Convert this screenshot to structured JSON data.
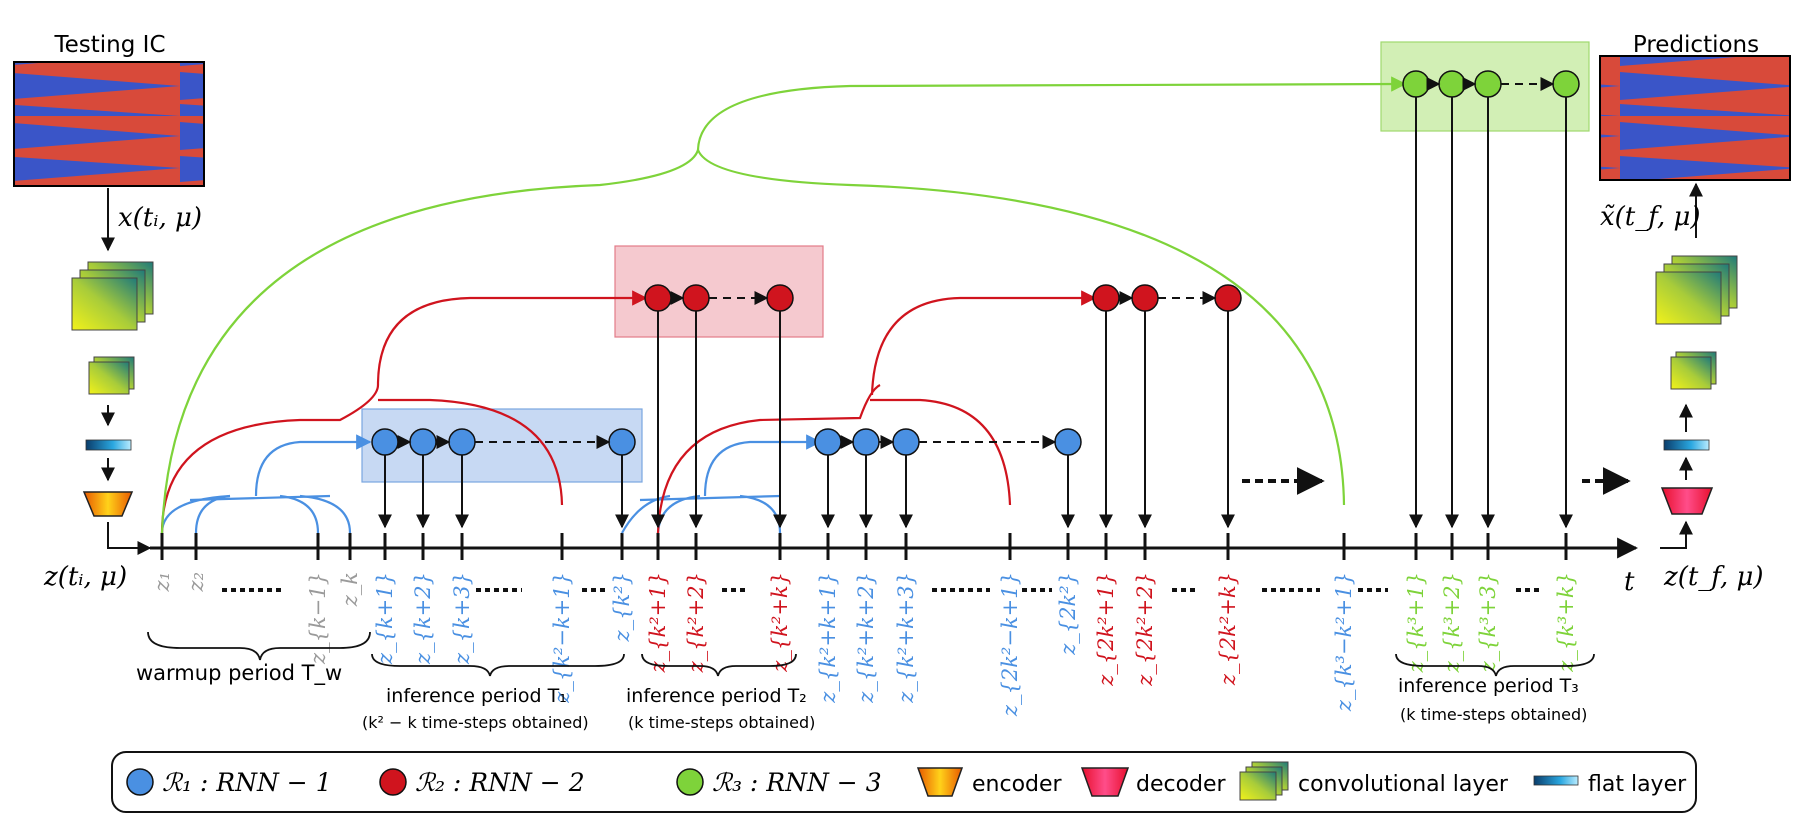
{
  "input_panel": {
    "title": "Testing IC",
    "arrow_label": "x(tᵢ, μ)"
  },
  "output_panel": {
    "title": "Predictions",
    "arrow_label": "x̃(t_f, μ)"
  },
  "axis": {
    "start_label": "z(tᵢ, μ)",
    "end_label": "z(t_f, μ)",
    "t_label": "t"
  },
  "ticks": [
    {
      "text": "z₁",
      "color": "gray"
    },
    {
      "text": "z₂",
      "color": "gray"
    },
    {
      "text": "z_{k−1}",
      "color": "gray"
    },
    {
      "text": "z_k",
      "color": "gray"
    },
    {
      "text": "z_{k+1}",
      "color": "blue"
    },
    {
      "text": "z_{k+2}",
      "color": "blue"
    },
    {
      "text": "z_{k+3}",
      "color": "blue"
    },
    {
      "text": "z_{k²−k+1}",
      "color": "blue"
    },
    {
      "text": "z_{k²}",
      "color": "blue"
    },
    {
      "text": "z_{k²+1}",
      "color": "red"
    },
    {
      "text": "z_{k²+2}",
      "color": "red"
    },
    {
      "text": "z_{k²+k}",
      "color": "red"
    },
    {
      "text": "z_{k²+k+1}",
      "color": "blue"
    },
    {
      "text": "z_{k²+k+2}",
      "color": "blue"
    },
    {
      "text": "z_{k²+k+3}",
      "color": "blue"
    },
    {
      "text": "z_{2k²−k+1}",
      "color": "blue"
    },
    {
      "text": "z_{2k²}",
      "color": "blue"
    },
    {
      "text": "z_{2k²+1}",
      "color": "red"
    },
    {
      "text": "z_{2k²+2}",
      "color": "red"
    },
    {
      "text": "z_{2k²+k}",
      "color": "red"
    },
    {
      "text": "z_{k³−k²+1}",
      "color": "blue"
    },
    {
      "text": "z_{k³+1}",
      "color": "green"
    },
    {
      "text": "z_{k³+2}",
      "color": "green"
    },
    {
      "text": "z_{k³+3}",
      "color": "green"
    },
    {
      "text": "z_{k³+k}",
      "color": "green"
    }
  ],
  "periods": {
    "warmup": "warmup period T_w",
    "t1": "inference period T₁",
    "t1_sub": "(k² − k time-steps obtained)",
    "t2": "inference period T₂",
    "t2_sub": "(k time-steps obtained)",
    "t3": "inference period T₃",
    "t3_sub": "(k time-steps obtained)"
  },
  "legend": {
    "r1": "ℛ₁ : RNN − 1",
    "r2": "ℛ₂ : RNN − 2",
    "r3": "ℛ₃ : RNN − 3",
    "encoder": "encoder",
    "decoder": "decoder",
    "conv": "convolutional layer",
    "flat": "flat layer"
  },
  "colors": {
    "gray": "#9a9a9a",
    "blue": "#4a90e2",
    "red": "#d0141e",
    "green": "#7ed33a",
    "blue_box": "#c7d9f3",
    "red_box": "#f5c9cf",
    "green_box": "#d2efb5"
  }
}
